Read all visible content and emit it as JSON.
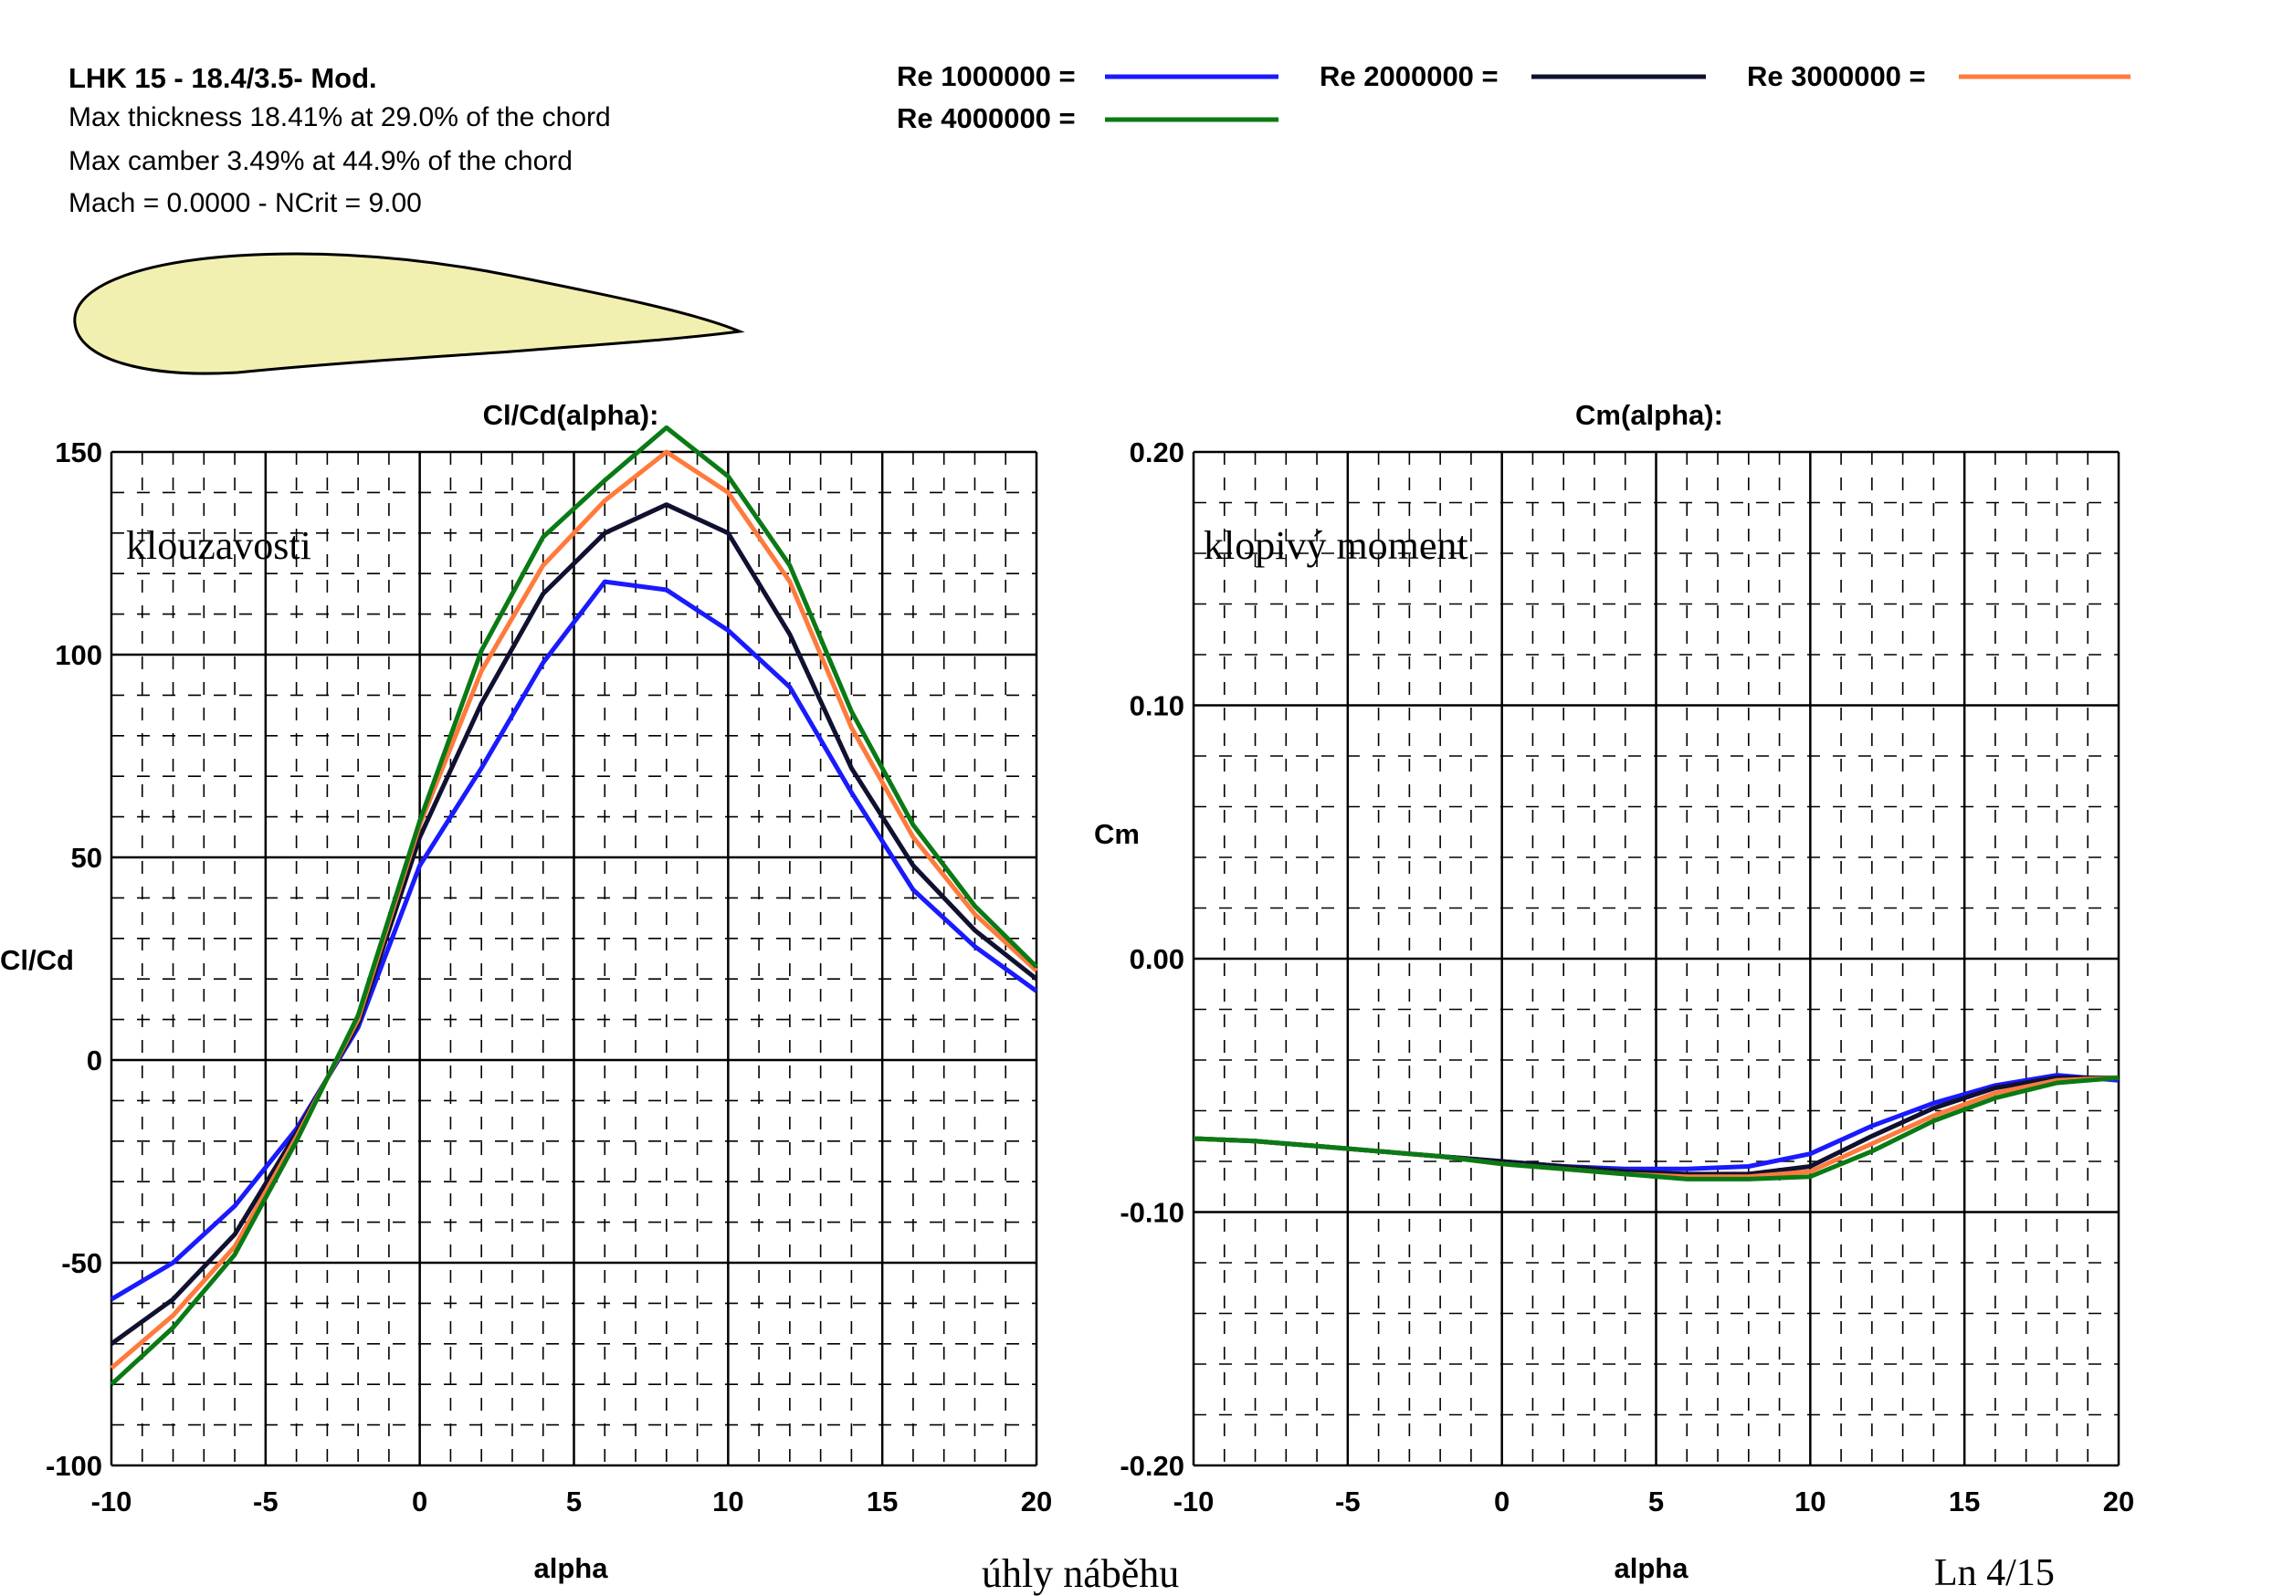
{
  "header": {
    "title": "LHK  15 - 18.4/3.5- Mod.",
    "lines": [
      "Max thickness 18.41% at 29.0% of the chord",
      "Max camber 3.49% at 44.9% of the chord",
      "Mach = 0.0000 - NCrit = 9.00"
    ]
  },
  "legend": [
    {
      "label": "Re 1000000 =",
      "color": "#1a1aff"
    },
    {
      "label": "Re 2000000 =",
      "color": "#101030"
    },
    {
      "label": "Re 3000000 =",
      "color": "#ff7a3c"
    },
    {
      "label": "Re 4000000 =",
      "color": "#0a7a14"
    }
  ],
  "colors": {
    "airfoil_fill": "#f2f0b0",
    "grid_major": "#000000",
    "grid_minor": "#000000"
  },
  "annotations": {
    "left": "klouzavosti",
    "right": "klopivý moment",
    "bottom": "úhly  náběhu",
    "page": "Ln 4/15"
  },
  "chart_data": [
    {
      "type": "line",
      "title": "Cl/Cd(alpha):",
      "xlabel": "alpha",
      "ylabel": "Cl/Cd",
      "xlim": [
        -10,
        20
      ],
      "ylim": [
        -100,
        150
      ],
      "xticks": [
        "-10",
        "-5",
        "0",
        "5",
        "10",
        "15",
        "20"
      ],
      "yticks": [
        "-100",
        "-50",
        "0",
        "50",
        "100",
        "150"
      ],
      "grid": true,
      "series": [
        {
          "name": "Re 1000000",
          "x": [
            -10,
            -8,
            -6,
            -4,
            -2,
            0,
            2,
            4,
            6,
            8,
            10,
            12,
            14,
            16,
            18,
            20
          ],
          "y": [
            -59,
            -50,
            -36,
            -17,
            8,
            48,
            72,
            98,
            118,
            116,
            106,
            92,
            66,
            42,
            28,
            17
          ]
        },
        {
          "name": "Re 2000000",
          "x": [
            -10,
            -8,
            -6,
            -4,
            -2,
            0,
            2,
            4,
            6,
            8,
            10,
            12,
            14,
            16,
            18,
            20
          ],
          "y": [
            -70,
            -59,
            -43,
            -18,
            9,
            55,
            88,
            115,
            130,
            137,
            130,
            105,
            72,
            48,
            32,
            20
          ]
        },
        {
          "name": "Re 3000000",
          "x": [
            -10,
            -8,
            -6,
            -4,
            -2,
            0,
            2,
            4,
            6,
            8,
            10,
            12,
            14,
            16,
            18,
            20
          ],
          "y": [
            -76,
            -63,
            -46,
            -19,
            10,
            58,
            96,
            122,
            138,
            150,
            140,
            118,
            82,
            55,
            36,
            22
          ]
        },
        {
          "name": "Re 4000000",
          "x": [
            -10,
            -8,
            -6,
            -4,
            -2,
            0,
            2,
            4,
            6,
            8,
            10,
            12,
            14,
            16,
            18,
            20
          ],
          "y": [
            -80,
            -66,
            -48,
            -20,
            11,
            59,
            101,
            129,
            143,
            156,
            144,
            122,
            86,
            58,
            38,
            23
          ]
        }
      ]
    },
    {
      "type": "line",
      "title": "Cm(alpha):",
      "xlabel": "alpha",
      "ylabel": "Cm",
      "xlim": [
        -10,
        20
      ],
      "ylim": [
        -0.2,
        0.2
      ],
      "xticks": [
        "-10",
        "-5",
        "0",
        "5",
        "10",
        "15",
        "20"
      ],
      "yticks": [
        "-0.20",
        "-0.10",
        "0.00",
        "0.10",
        "0.20"
      ],
      "grid": true,
      "series": [
        {
          "name": "Re 1000000",
          "x": [
            -10,
            -8,
            -6,
            -4,
            -2,
            0,
            2,
            4,
            6,
            8,
            10,
            12,
            14,
            16,
            18,
            20
          ],
          "y": [
            -0.071,
            -0.072,
            -0.074,
            -0.076,
            -0.078,
            -0.08,
            -0.082,
            -0.083,
            -0.083,
            -0.082,
            -0.077,
            -0.066,
            -0.057,
            -0.05,
            -0.046,
            -0.048
          ]
        },
        {
          "name": "Re 2000000",
          "x": [
            -10,
            -8,
            -6,
            -4,
            -2,
            0,
            2,
            4,
            6,
            8,
            10,
            12,
            14,
            16,
            18,
            20
          ],
          "y": [
            -0.071,
            -0.072,
            -0.074,
            -0.076,
            -0.078,
            -0.08,
            -0.082,
            -0.084,
            -0.085,
            -0.085,
            -0.082,
            -0.07,
            -0.059,
            -0.051,
            -0.047,
            -0.047
          ]
        },
        {
          "name": "Re 3000000",
          "x": [
            -10,
            -8,
            -6,
            -4,
            -2,
            0,
            2,
            4,
            6,
            8,
            10,
            12,
            14,
            16,
            18,
            20
          ],
          "y": [
            -0.071,
            -0.072,
            -0.074,
            -0.076,
            -0.078,
            -0.081,
            -0.083,
            -0.085,
            -0.086,
            -0.086,
            -0.084,
            -0.073,
            -0.062,
            -0.053,
            -0.048,
            -0.047
          ]
        },
        {
          "name": "Re 4000000",
          "x": [
            -10,
            -8,
            -6,
            -4,
            -2,
            0,
            2,
            4,
            6,
            8,
            10,
            12,
            14,
            16,
            18,
            20
          ],
          "y": [
            -0.071,
            -0.072,
            -0.074,
            -0.076,
            -0.078,
            -0.081,
            -0.083,
            -0.085,
            -0.087,
            -0.087,
            -0.086,
            -0.076,
            -0.064,
            -0.055,
            -0.049,
            -0.047
          ]
        }
      ]
    }
  ]
}
